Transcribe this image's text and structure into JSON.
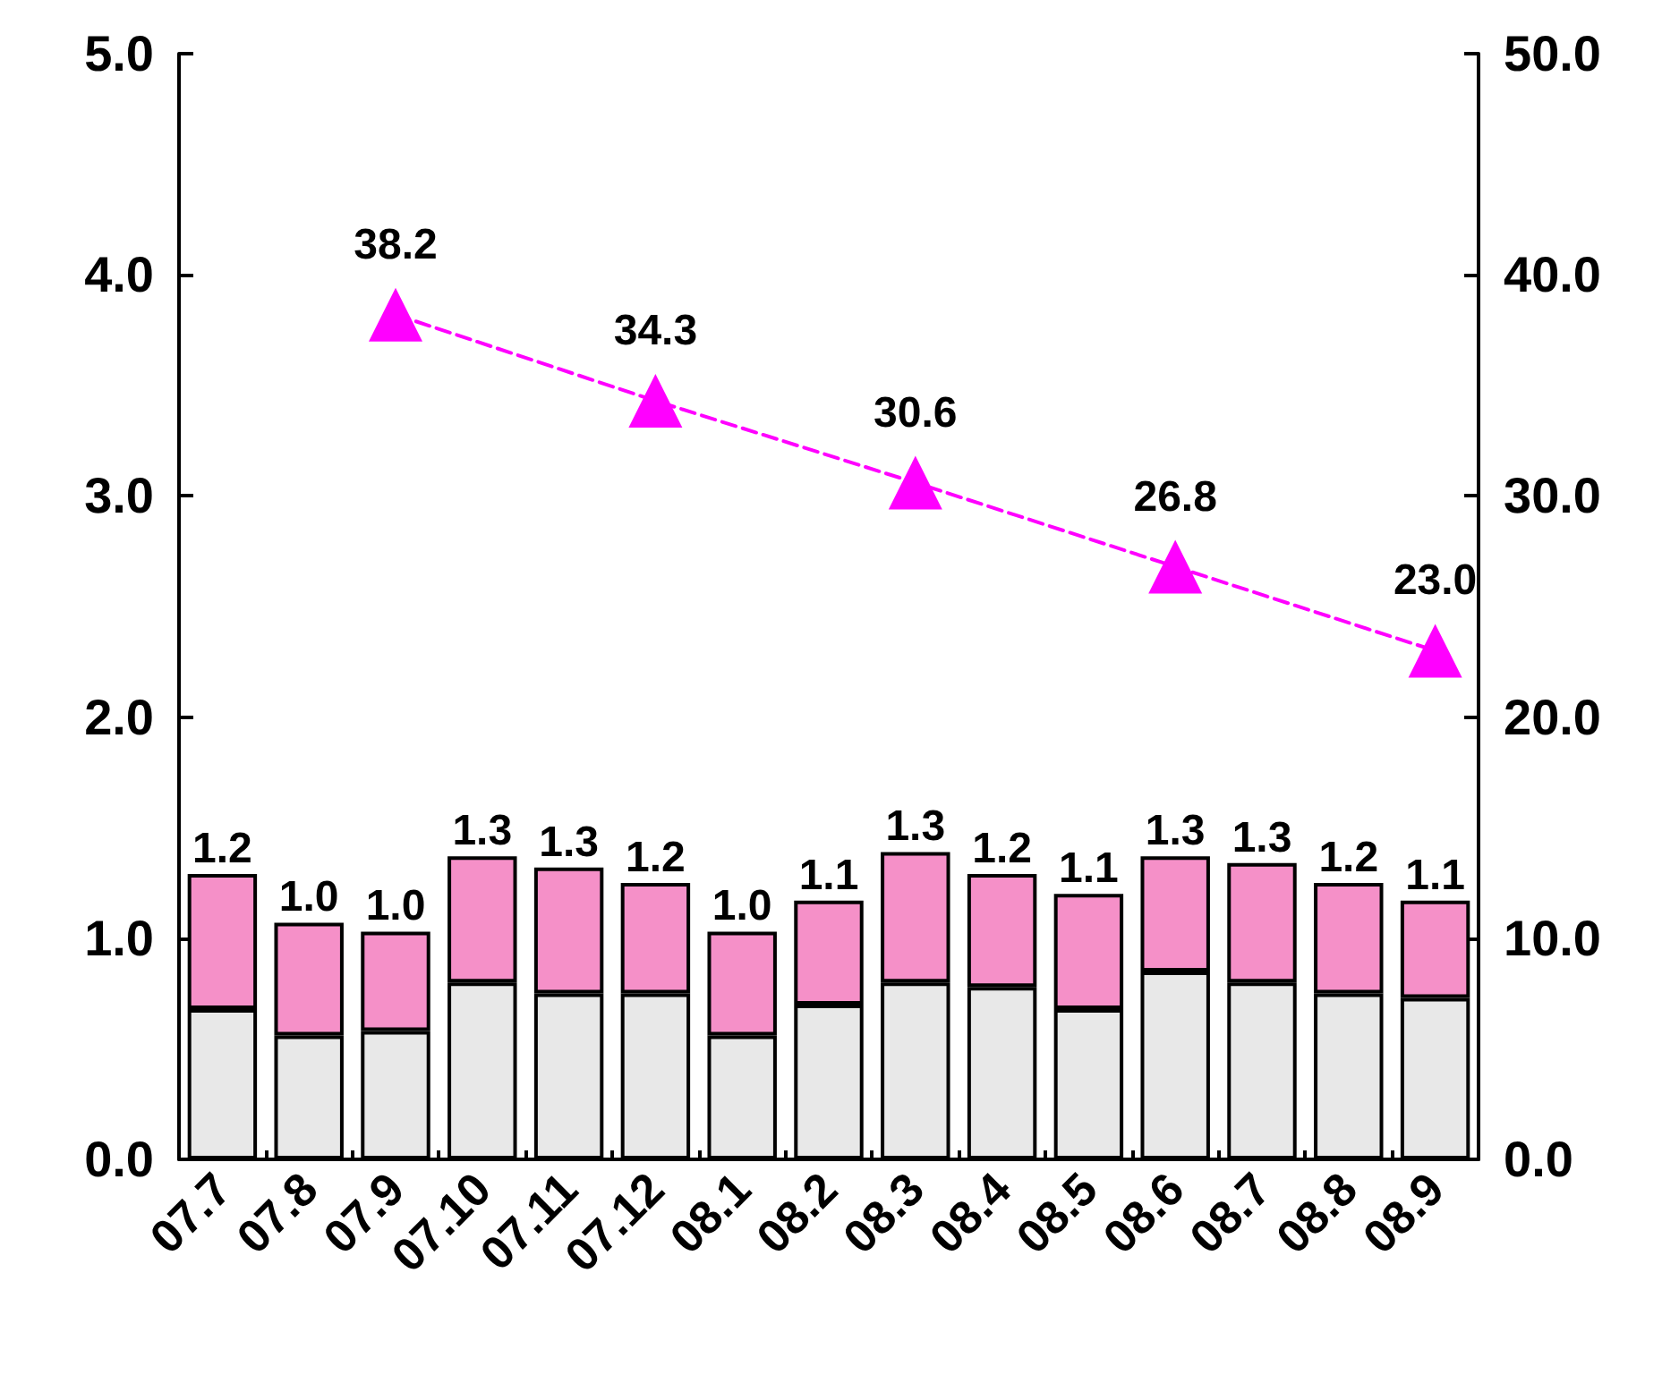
{
  "chart_data": {
    "type": "bar",
    "stacked": true,
    "categories": [
      "07.7",
      "07.8",
      "07.9",
      "07.10",
      "07.11",
      "07.12",
      "08.1",
      "08.2",
      "08.3",
      "08.4",
      "08.5",
      "08.6",
      "08.7",
      "08.8",
      "08.9"
    ],
    "series": [
      {
        "color": "#e8e8e8",
        "values": [
          0.68,
          0.56,
          0.58,
          0.8,
          0.75,
          0.75,
          0.56,
          0.7,
          0.8,
          0.78,
          0.68,
          0.85,
          0.8,
          0.75,
          0.73
        ]
      },
      {
        "color": "#f590c8",
        "values": [
          0.61,
          0.51,
          0.45,
          0.57,
          0.57,
          0.5,
          0.47,
          0.47,
          0.59,
          0.51,
          0.52,
          0.52,
          0.54,
          0.5,
          0.44
        ]
      },
      {
        "type": "line",
        "axis": "y2",
        "color": "#ff00ff",
        "marker": "triangle",
        "line_style": "dashed",
        "values": [
          null,
          null,
          38.2,
          null,
          null,
          34.3,
          null,
          null,
          30.6,
          null,
          null,
          26.8,
          null,
          null,
          23.0
        ],
        "value_labels": [
          null,
          null,
          "38.2",
          null,
          null,
          "34.3",
          null,
          null,
          "30.6",
          null,
          null,
          "26.8",
          null,
          null,
          "23.0"
        ]
      }
    ],
    "totals": [
      "1.2",
      "1.0",
      "1.0",
      "1.3",
      "1.3",
      "1.2",
      "1.0",
      "1.1",
      "1.3",
      "1.2",
      "1.1",
      "1.3",
      "1.3",
      "1.2",
      "1.1"
    ],
    "ylim": [
      0,
      5
    ],
    "yticks": [
      {
        "value": 0,
        "label": "0.0"
      },
      {
        "value": 1,
        "label": "1.0"
      },
      {
        "value": 2,
        "label": "2.0"
      },
      {
        "value": 3,
        "label": "3.0"
      },
      {
        "value": 4,
        "label": "4.0"
      },
      {
        "value": 5,
        "label": "5.0"
      }
    ],
    "y2lim": [
      0,
      50
    ],
    "y2ticks": [
      {
        "value": 0,
        "label": "0.0"
      },
      {
        "value": 10,
        "label": "10.0"
      },
      {
        "value": 20,
        "label": "20.0"
      },
      {
        "value": 30,
        "label": "30.0"
      },
      {
        "value": 40,
        "label": "40.0"
      },
      {
        "value": 50,
        "label": "50.0"
      }
    ],
    "grid": false
  }
}
